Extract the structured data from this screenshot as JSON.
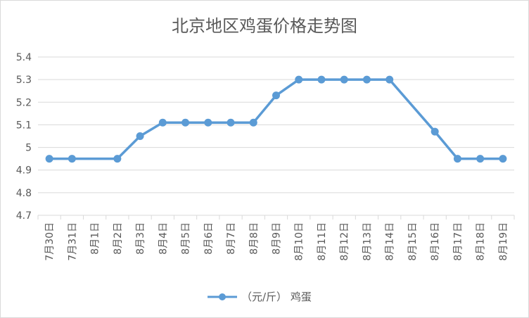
{
  "chart_data": {
    "type": "line",
    "title": "北京地区鸡蛋价格走势图",
    "xlabel": "",
    "ylabel": "",
    "ylim": [
      4.7,
      5.4
    ],
    "yticks": [
      "4.7",
      "4.8",
      "4.9",
      "5",
      "5.1",
      "5.2",
      "5.3",
      "5.4"
    ],
    "grid": true,
    "legend_position": "bottom",
    "categories": [
      "7月30日",
      "7月31日",
      "8月1日",
      "8月2日",
      "8月3日",
      "8月4日",
      "8月5日",
      "8月6日",
      "8月7日",
      "8月8日",
      "8月9日",
      "8月10日",
      "8月11日",
      "8月12日",
      "8月13日",
      "8月14日",
      "8月15日",
      "8月16日",
      "8月17日",
      "8月18日",
      "8月19日"
    ],
    "series": [
      {
        "name": "（元/斤） 鸡蛋",
        "color": "#5b9bd5",
        "values": [
          4.95,
          4.95,
          null,
          4.95,
          5.05,
          5.11,
          5.11,
          5.11,
          5.11,
          5.11,
          5.23,
          5.3,
          5.3,
          5.3,
          5.3,
          5.3,
          null,
          5.07,
          4.95,
          4.95,
          4.95
        ]
      }
    ]
  }
}
